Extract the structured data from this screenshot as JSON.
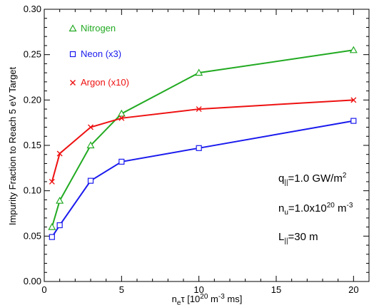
{
  "chart_data": {
    "type": "line",
    "x": [
      0.5,
      1,
      3,
      5,
      10,
      20
    ],
    "xlim": [
      0,
      21
    ],
    "ylim": [
      0,
      0.3
    ],
    "xticks": [
      0,
      5,
      10,
      15,
      20
    ],
    "yticks": [
      0.0,
      0.05,
      0.1,
      0.15,
      0.2,
      0.25,
      0.3
    ],
    "ytick_labels": [
      "0.00",
      "0.05",
      "0.10",
      "0.15",
      "0.20",
      "0.25",
      "0.30"
    ],
    "xtick_labels": [
      "0",
      "5",
      "10",
      "15",
      "20"
    ],
    "ylabel": "Impurity Fraction to Reach 5 eV Target",
    "xlabel": {
      "base": "n",
      "sub": "e",
      "tau": "τ",
      "open": " [10",
      "sup1": "20",
      "mid": " m",
      "sup2": "-3",
      "close": " ms]"
    },
    "grid": false,
    "legend_position": "top-left",
    "series": [
      {
        "name": "Nitrogen",
        "color": "#22aa22",
        "marker": "triangle",
        "marker_glyph": "△",
        "values": [
          0.06,
          0.089,
          0.15,
          0.185,
          0.23,
          0.255
        ]
      },
      {
        "name": "Neon (x3)",
        "color": "#1a1aee",
        "marker": "square",
        "marker_glyph": "□",
        "values": [
          0.049,
          0.062,
          0.111,
          0.132,
          0.147,
          0.177
        ]
      },
      {
        "name": "Argon (x10)",
        "color": "#ee1111",
        "marker": "cross",
        "marker_glyph": "×",
        "values": [
          0.11,
          0.141,
          0.17,
          0.18,
          0.19,
          0.2
        ]
      }
    ],
    "annotations": [
      {
        "base": "q",
        "sub": "||",
        "rest": "=1.0 GW/m",
        "sup": "2"
      },
      {
        "base": "n",
        "sub": "u",
        "rest": "=1.0x10",
        "sup": "20",
        "tail": " m",
        "sup2": "-3"
      },
      {
        "base": "L",
        "sub": "||",
        "rest": "=30 m"
      }
    ]
  }
}
